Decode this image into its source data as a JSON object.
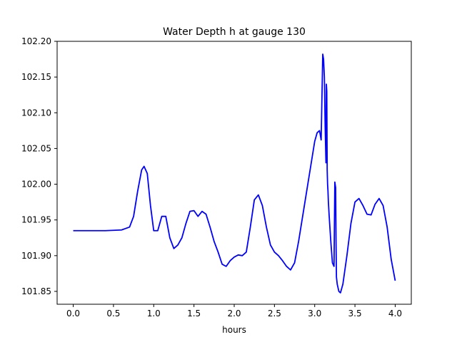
{
  "chart_data": {
    "type": "line",
    "title": "Water Depth h at gauge 130",
    "xlabel": "hours",
    "ylabel": "",
    "xlim": [
      -0.2,
      4.2
    ],
    "ylim": [
      101.832,
      102.2
    ],
    "xticks": [
      0.0,
      0.5,
      1.0,
      1.5,
      2.0,
      2.5,
      3.0,
      3.5,
      4.0
    ],
    "xtick_labels": [
      "0.0",
      "0.5",
      "1.0",
      "1.5",
      "2.0",
      "2.5",
      "3.0",
      "3.5",
      "4.0"
    ],
    "yticks": [
      101.85,
      101.9,
      101.95,
      102.0,
      102.05,
      102.1,
      102.15,
      102.2
    ],
    "ytick_labels": [
      "101.85",
      "101.90",
      "101.95",
      "102.00",
      "102.05",
      "102.10",
      "102.15",
      "102.20"
    ],
    "grid": false,
    "legend": "none",
    "series": [
      {
        "color": "#0000ff",
        "x": [
          0.0,
          0.2,
          0.4,
          0.6,
          0.7,
          0.75,
          0.8,
          0.85,
          0.88,
          0.92,
          0.96,
          1.0,
          1.05,
          1.1,
          1.15,
          1.2,
          1.25,
          1.3,
          1.35,
          1.4,
          1.45,
          1.5,
          1.55,
          1.6,
          1.65,
          1.7,
          1.75,
          1.8,
          1.85,
          1.9,
          1.95,
          2.0,
          2.05,
          2.1,
          2.15,
          2.2,
          2.25,
          2.3,
          2.35,
          2.4,
          2.45,
          2.5,
          2.55,
          2.6,
          2.65,
          2.7,
          2.75,
          2.8,
          2.85,
          2.9,
          2.95,
          3.0,
          3.03,
          3.06,
          3.08,
          3.1,
          3.11,
          3.12,
          3.13,
          3.14,
          3.145,
          3.15,
          3.155,
          3.16,
          3.165,
          3.17,
          3.18,
          3.2,
          3.22,
          3.24,
          3.25,
          3.26,
          3.265,
          3.27,
          3.28,
          3.3,
          3.32,
          3.35,
          3.4,
          3.45,
          3.5,
          3.55,
          3.6,
          3.65,
          3.7,
          3.75,
          3.8,
          3.85,
          3.9,
          3.95,
          4.0
        ],
        "y": [
          101.935,
          101.935,
          101.935,
          101.936,
          101.94,
          101.955,
          101.99,
          102.02,
          102.025,
          102.015,
          101.97,
          101.935,
          101.935,
          101.955,
          101.955,
          101.925,
          101.91,
          101.915,
          101.925,
          101.945,
          101.962,
          101.963,
          101.955,
          101.962,
          101.958,
          101.94,
          101.92,
          101.905,
          101.888,
          101.885,
          101.893,
          101.898,
          101.901,
          101.9,
          101.905,
          101.94,
          101.978,
          101.985,
          101.97,
          101.94,
          101.915,
          101.905,
          101.9,
          101.893,
          101.885,
          101.88,
          101.89,
          101.92,
          101.955,
          101.99,
          102.025,
          102.06,
          102.072,
          102.075,
          102.062,
          102.182,
          102.175,
          102.15,
          102.08,
          102.03,
          102.14,
          102.13,
          102.02,
          102.0,
          101.99,
          101.975,
          101.955,
          101.92,
          101.89,
          101.885,
          102.003,
          101.995,
          101.92,
          101.87,
          101.86,
          101.85,
          101.848,
          101.86,
          101.9,
          101.945,
          101.975,
          101.98,
          101.97,
          101.958,
          101.957,
          101.972,
          101.98,
          101.97,
          101.94,
          101.895,
          101.865
        ]
      }
    ]
  }
}
